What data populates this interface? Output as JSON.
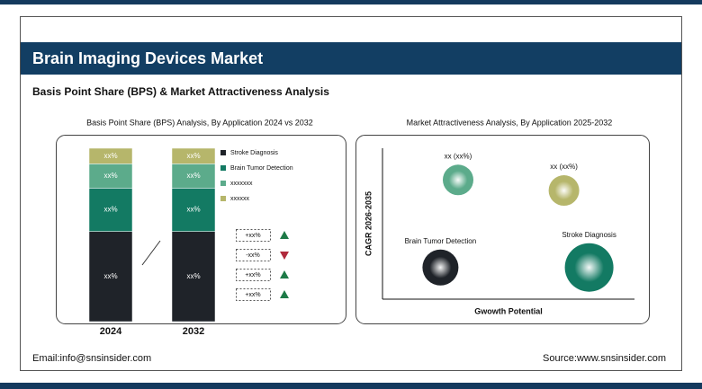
{
  "header": {
    "title": "Brain Imaging Devices Market",
    "subtitle": "Basis Point Share (BPS) & Market Attractiveness Analysis"
  },
  "footer": {
    "email": "Email:info@snsinsider.com",
    "source": "Source:www.snsinsider.com"
  },
  "chart_data": [
    {
      "type": "bar",
      "stacked": true,
      "title": "Basis Point Share (BPS) Analysis, By Application 2024 vs 2032",
      "categories": [
        "2024",
        "2032"
      ],
      "ylim": [
        0,
        100
      ],
      "series": [
        {
          "name": "Stroke Diagnosis",
          "color": "#1f2329",
          "values": [
            52,
            52
          ],
          "value_labels": [
            "xx%",
            "xx%"
          ]
        },
        {
          "name": "Brain Tumor Detection",
          "color": "#137a63",
          "values": [
            25,
            25
          ],
          "value_labels": [
            "xx%",
            "xx%"
          ]
        },
        {
          "name": "xxxxxxx",
          "color": "#5cab8b",
          "values": [
            14,
            14
          ],
          "value_labels": [
            "xx%",
            "xx%"
          ]
        },
        {
          "name": "xxxxxx",
          "color": "#b6b66b",
          "values": [
            9,
            9
          ],
          "value_labels": [
            "xx%",
            "xx%"
          ]
        }
      ],
      "changes": [
        {
          "label": "+xx%",
          "direction": "up"
        },
        {
          "label": "-xx%",
          "direction": "down"
        },
        {
          "label": "+xx%",
          "direction": "up"
        },
        {
          "label": "+xx%",
          "direction": "up"
        }
      ]
    },
    {
      "type": "bubble",
      "title": "Market Attractiveness Analysis, By Application 2025-2032",
      "xlabel": "Gwowth Potential",
      "ylabel": "CAGR 2026-2035",
      "xlim": [
        0,
        100
      ],
      "ylim": [
        0,
        100
      ],
      "points": [
        {
          "label": "xx (xx%)",
          "x": 30,
          "y": 79,
          "size": 17,
          "color": "#5cab8b"
        },
        {
          "label": "xx (xx%)",
          "x": 72,
          "y": 72,
          "size": 17,
          "color": "#b6b66b"
        },
        {
          "label": "Brain Tumor Detection",
          "x": 23,
          "y": 21,
          "size": 20,
          "color": "#1f2329"
        },
        {
          "label": "Stroke Diagnosis",
          "x": 82,
          "y": 21,
          "size": 27,
          "color": "#137a63"
        }
      ]
    }
  ]
}
